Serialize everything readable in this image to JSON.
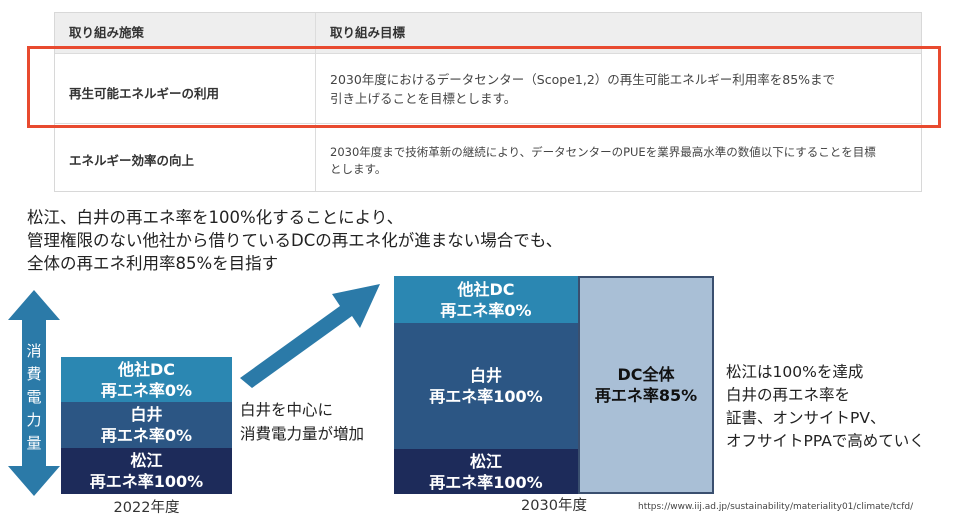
{
  "table": {
    "header_col1": "取り組み施策",
    "header_col2": "取り組み目標",
    "row1_measure": "再生可能エネルギーの利用",
    "row1_goal_line1": "2030年度におけるデータセンター（Scope1,2）の再生可能エネルギー利用率を85%まで",
    "row1_goal_line2": "引き上げることを目標とします。",
    "row2_measure": "エネルギー効率の向上",
    "row2_goal_line1": "2030年度まで技術革新の継続により、データセンターのPUEを業界最高水準の数値以下にすることを目標",
    "row2_goal_line2": "とします。"
  },
  "headline": {
    "line1": "松江、白井の再エネ率を100%化することにより、",
    "line2": "管理権限のない他社から借りているDCの再エネ化が進まない場合でも、",
    "line3": "全体の再エネ利用率85%を目指す"
  },
  "axis_label": [
    "消",
    "費",
    "電",
    "力",
    "量"
  ],
  "bar2022": {
    "year": "2022年度",
    "other_dc": [
      "他社DC",
      "再エネ率0%"
    ],
    "shiroi": [
      "白井",
      "再エネ率0%"
    ],
    "matsue": [
      "松江",
      "再エネ率100%"
    ]
  },
  "middle_text": [
    "白井を中心に",
    "消費電力量が増加"
  ],
  "bar2030": {
    "year": "2030年度",
    "other_dc": [
      "他社DC",
      "再エネ率0%"
    ],
    "shiroi": [
      "白井",
      "再エネ率100%"
    ],
    "matsue": [
      "松江",
      "再エネ率100%"
    ],
    "total": [
      "DC全体",
      "再エネ率85%"
    ]
  },
  "right_text": [
    "松江は100%を達成",
    "白井の再エネ率を",
    "証書、オンサイトPV、",
    "オフサイトPPAで高めていく"
  ],
  "source_url": "https://www.iij.ad.jp/sustainability/materiality01/climate/tcfd/",
  "colors": {
    "highlight_red": "#e84a2f",
    "other_dc_blue": "#2b87b2",
    "shiroi_blue": "#2c5684",
    "matsue_navy": "#1d2b5a",
    "total_pale": "#a9bfd6",
    "arrow_blue": "#2b7aa8"
  }
}
